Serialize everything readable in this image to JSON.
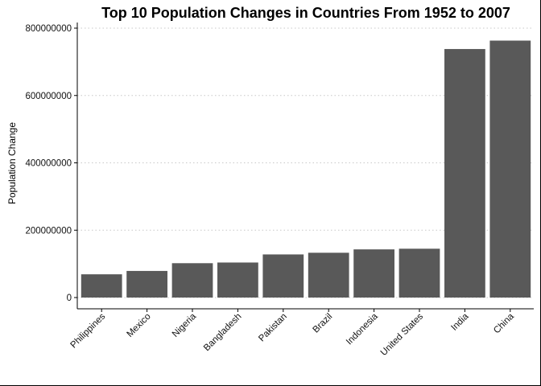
{
  "chart_data": {
    "type": "bar",
    "title": "Top 10 Population Changes in Countries From 1952 to 2007",
    "xlabel": "",
    "ylabel": "Population Change",
    "categories": [
      "Philippines",
      "Mexico",
      "Nigeria",
      "Bangladesh",
      "Pakistan",
      "Brazil",
      "Indonesia",
      "United States",
      "India",
      "China"
    ],
    "values": [
      69000000,
      79000000,
      102000000,
      104000000,
      128000000,
      133000000,
      143000000,
      145000000,
      738000000,
      763000000
    ],
    "ylim": [
      0,
      800000000
    ],
    "yticks": [
      0,
      200000000,
      400000000,
      600000000,
      800000000
    ],
    "ytick_labels": [
      "0",
      "200000000",
      "400000000",
      "600000000",
      "800000000"
    ],
    "grid": "horizontal-dotted",
    "bar_color": "#595959",
    "grid_color": "#c8c8c8",
    "axis_color": "#000000"
  }
}
